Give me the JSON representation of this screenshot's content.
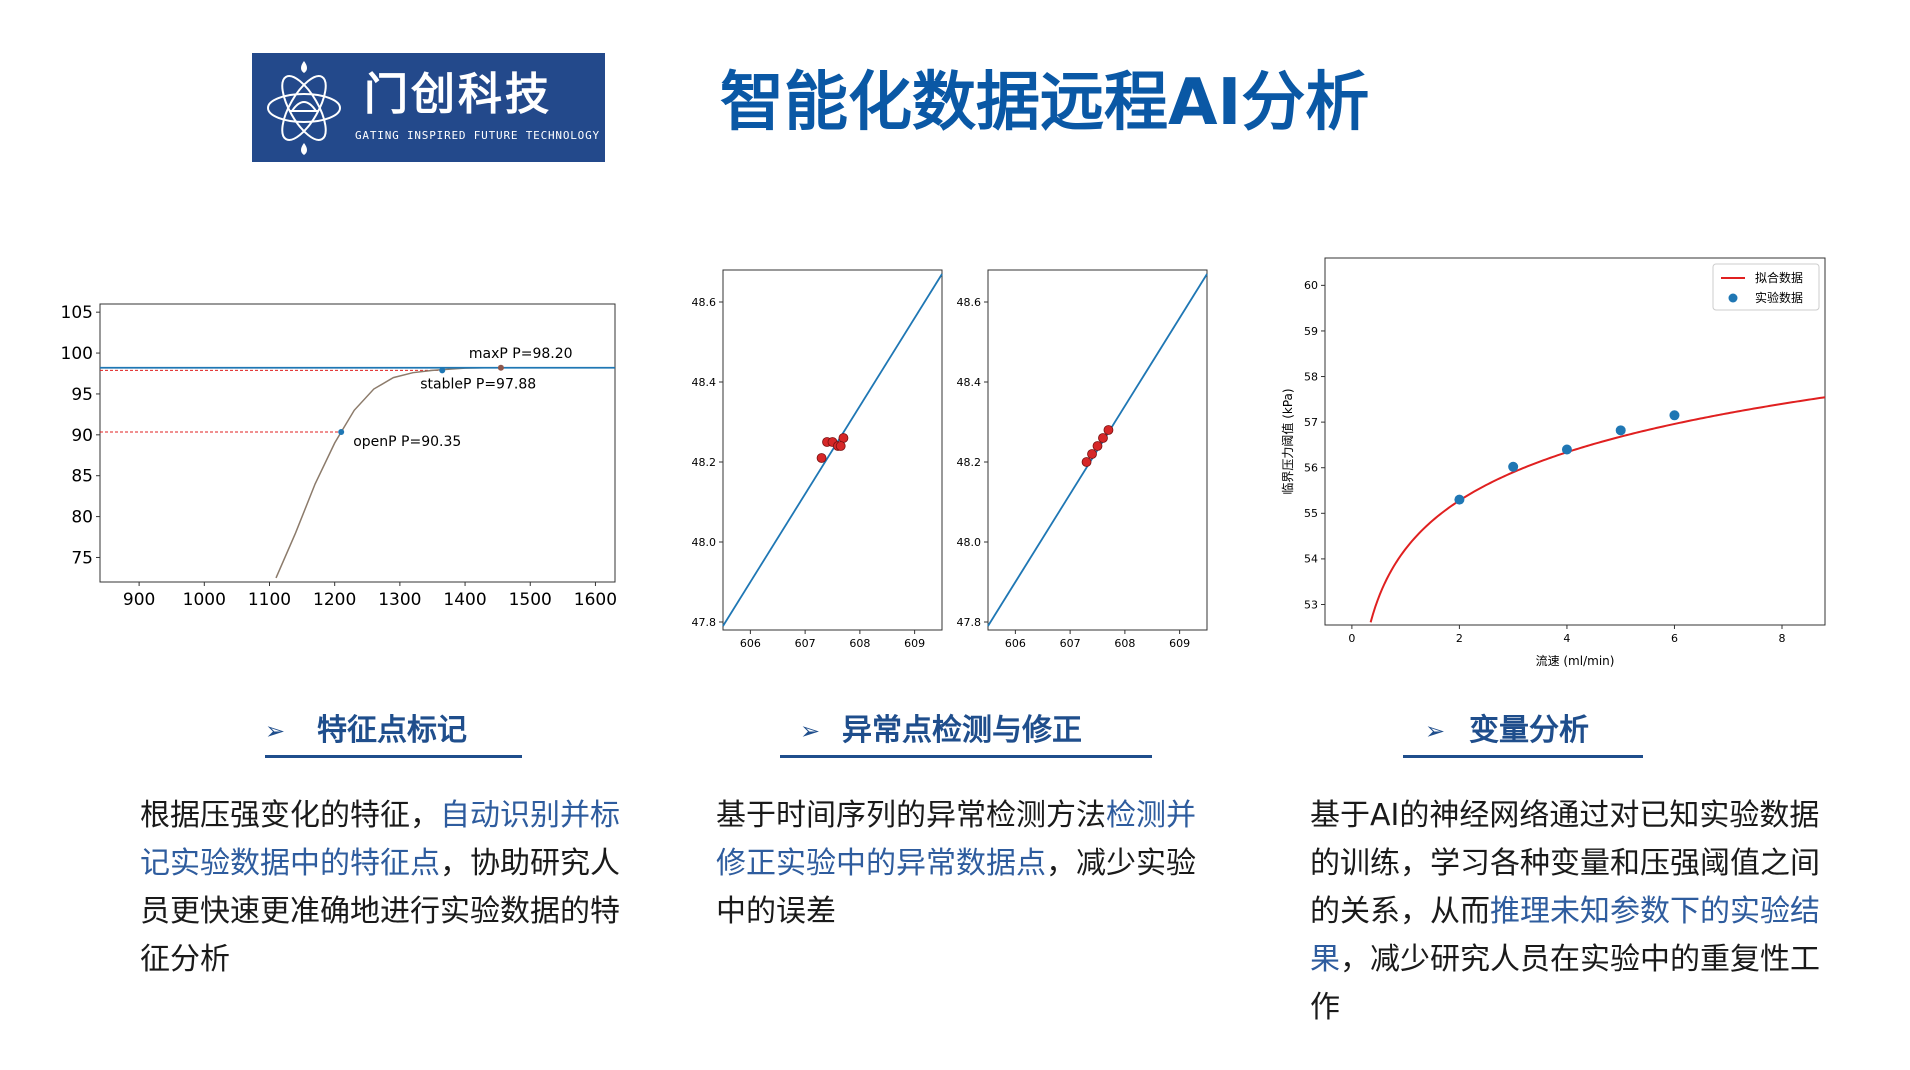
{
  "logo": {
    "name_cn": "门创科技",
    "name_en": "GATING INSPIRED FUTURE TECHNOLOGY",
    "bg_color": "#23498b",
    "icon": "atom-emblem-icon"
  },
  "page_title": "智能化数据远程AI分析",
  "title_color": "#0a58a5",
  "accent_color": "#1f4e8c",
  "highlight_color": "#2e5c9e",
  "sections": [
    {
      "heading": "特征点标记",
      "desc": [
        {
          "text": "根据压强变化的特征，",
          "hl": false
        },
        {
          "text": "自动识别并标记实验数据中的特征点",
          "hl": true
        },
        {
          "text": "，协助研究人员更快速更准确地进行实验数据的特征分析",
          "hl": false
        }
      ]
    },
    {
      "heading": "异常点检测与修正",
      "desc": [
        {
          "text": "基于时间序列的异常检测方法",
          "hl": false
        },
        {
          "text": "检测并修正实验中的异常数据点",
          "hl": true
        },
        {
          "text": "，减少实验中的误差",
          "hl": false
        }
      ]
    },
    {
      "heading": "变量分析",
      "desc": [
        {
          "text": "基于AI的神经网络通过对已知实验数据的训练，学习各种变量和压强阈值之间的关系，从而",
          "hl": false
        },
        {
          "text": "推理未知参数下的实验结果",
          "hl": true
        },
        {
          "text": "，减少研究人员在实验中的重复性工作",
          "hl": false
        }
      ]
    }
  ],
  "chart_data": [
    {
      "type": "line",
      "xlim": [
        840,
        1630
      ],
      "ylim": [
        72,
        106
      ],
      "xticks": [
        900,
        1000,
        1100,
        1200,
        1300,
        1400,
        1500,
        1600
      ],
      "yticks": [
        75,
        80,
        85,
        90,
        95,
        100,
        105
      ],
      "series": [
        {
          "color": "#8c7b6b",
          "x": [
            1110,
            1140,
            1170,
            1200,
            1210,
            1230,
            1260,
            1290,
            1320,
            1350,
            1380,
            1400,
            1430,
            1460
          ],
          "y": [
            72.5,
            78,
            84,
            89,
            90.35,
            93,
            95.6,
            97.0,
            97.6,
            97.88,
            98.05,
            98.15,
            98.2,
            98.2
          ]
        },
        {
          "color": "#1f77b4",
          "x": [
            840,
            1630
          ],
          "y": [
            98.2,
            98.2
          ]
        }
      ],
      "markers": [
        {
          "label": "maxP P=98.20",
          "x": 1455,
          "y": 98.2,
          "color": "#8c564b"
        },
        {
          "label": "stableP P=97.88",
          "x": 1365,
          "y": 97.88,
          "color": "#1f77b4"
        },
        {
          "label": "openP P=90.35",
          "x": 1210,
          "y": 90.35,
          "color": "#1f77b4"
        }
      ],
      "reference_lines": [
        {
          "y": 97.88,
          "x_end": 1365,
          "color": "#e02020"
        },
        {
          "y": 90.35,
          "x_end": 1210,
          "color": "#e02020"
        }
      ]
    },
    {
      "type": "scatter",
      "xlim": [
        605.5,
        609.5
      ],
      "ylim": [
        47.78,
        48.68
      ],
      "xticks": [
        606,
        607,
        608,
        609
      ],
      "yticks": [
        47.8,
        48.0,
        48.2,
        48.4,
        48.6
      ],
      "line": {
        "color": "#1f77b4",
        "x": [
          605.5,
          609.5
        ],
        "y": [
          47.79,
          48.67
        ]
      },
      "points": {
        "color": "#d62728",
        "x": [
          607.3,
          607.4,
          607.5,
          607.6,
          607.7,
          607.65
        ],
        "y": [
          48.21,
          48.25,
          48.25,
          48.24,
          48.26,
          48.24
        ]
      }
    },
    {
      "type": "scatter",
      "xlim": [
        605.5,
        609.5
      ],
      "ylim": [
        47.78,
        48.68
      ],
      "xticks": [
        606,
        607,
        608,
        609
      ],
      "yticks": [
        47.8,
        48.0,
        48.2,
        48.4,
        48.6
      ],
      "line": {
        "color": "#1f77b4",
        "x": [
          605.5,
          609.5
        ],
        "y": [
          47.79,
          48.67
        ]
      },
      "points": {
        "color": "#d62728",
        "x": [
          607.3,
          607.4,
          607.5,
          607.6,
          607.7
        ],
        "y": [
          48.2,
          48.22,
          48.24,
          48.26,
          48.28
        ]
      }
    },
    {
      "type": "line",
      "xlabel": "流速 (ml/min)",
      "ylabel": "临界压力阈值 (kPa)",
      "xlim": [
        -0.5,
        8.8
      ],
      "ylim": [
        52.55,
        60.6
      ],
      "xticks": [
        0,
        2,
        4,
        6,
        8
      ],
      "yticks": [
        53,
        54,
        55,
        56,
        57,
        58,
        59,
        60
      ],
      "legend": {
        "position": "top-right",
        "entries": [
          "拟合数据",
          "实验数据"
        ]
      },
      "series": [
        {
          "name": "拟合数据",
          "color": "#e02020",
          "type": "line"
        },
        {
          "name": "实验数据",
          "color": "#1f77b4",
          "type": "scatter",
          "x": [
            2,
            3,
            4,
            5,
            6
          ],
          "y": [
            55.3,
            56.02,
            56.4,
            56.82,
            57.15
          ]
        }
      ]
    }
  ]
}
